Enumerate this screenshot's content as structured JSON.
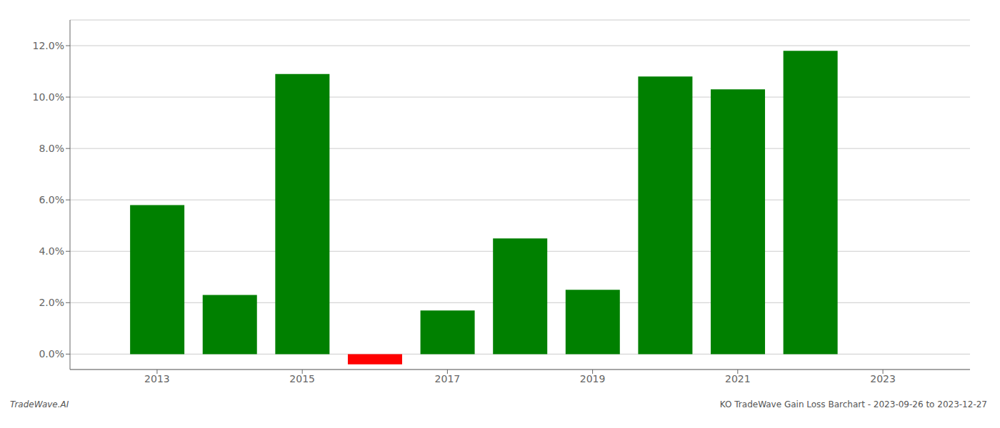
{
  "chart_data": {
    "type": "bar",
    "x": [
      2013,
      2014,
      2015,
      2016,
      2017,
      2018,
      2019,
      2020,
      2021,
      2022,
      2023
    ],
    "values": [
      0.058,
      0.023,
      0.109,
      -0.004,
      0.017,
      0.045,
      0.025,
      0.108,
      0.103,
      0.118,
      null
    ],
    "colors": [
      "#008000",
      "#008000",
      "#008000",
      "#ff0000",
      "#008000",
      "#008000",
      "#008000",
      "#008000",
      "#008000",
      "#008000",
      null
    ],
    "xlim": [
      2011.8,
      2024.2
    ],
    "xticks": [
      2013,
      2015,
      2017,
      2019,
      2021,
      2023
    ],
    "ylim": [
      -0.006,
      0.13
    ],
    "yticks": [
      {
        "value": 0.0,
        "label": "0.0%"
      },
      {
        "value": 0.02,
        "label": "2.0%"
      },
      {
        "value": 0.04,
        "label": "4.0%"
      },
      {
        "value": 0.06,
        "label": "6.0%"
      },
      {
        "value": 0.08,
        "label": "8.0%"
      },
      {
        "value": 0.1,
        "label": "10.0%"
      },
      {
        "value": 0.12,
        "label": "12.0%"
      }
    ],
    "grid": "y",
    "annotations": [
      "TradeWave.AI",
      "KO TradeWave Gain Loss Barchart - 2023-09-26 to 2023-12-27"
    ]
  }
}
